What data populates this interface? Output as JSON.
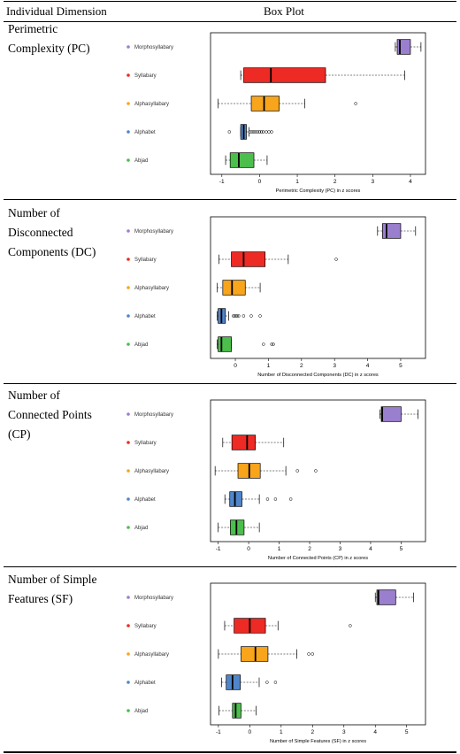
{
  "table": {
    "col1_header": "Individual Dimension",
    "col2_header": "Box Plot"
  },
  "colors": {
    "Morphosyllabary": "#9b7fcf",
    "Syllabary": "#ee2a24",
    "Alphasyllabary": "#f8a51c",
    "Alphabet": "#4f86cb",
    "Abjad": "#4cbe4c"
  },
  "rows": [
    {
      "label": "Perimetric Complexity (PC)",
      "chart_data": {
        "type": "boxplot",
        "orientation": "horizontal",
        "categories": [
          "Morphosyllabary",
          "Syllabary",
          "Alphasyllabary",
          "Alphabet",
          "Abjad"
        ],
        "xlabel": "Perimetric Complexity (PC) in z scores",
        "xticks": [
          -1,
          0,
          1,
          2,
          3,
          4
        ],
        "xlim": [
          -1.3,
          4.4
        ],
        "boxes": [
          {
            "name": "Morphosyllabary",
            "whislo": 3.6,
            "q1": 3.65,
            "med": 3.72,
            "q3": 4.0,
            "whishi": 4.28,
            "outliers": []
          },
          {
            "name": "Syllabary",
            "whislo": -0.5,
            "q1": -0.42,
            "med": 0.3,
            "q3": 1.75,
            "whishi": 3.85,
            "outliers": []
          },
          {
            "name": "Alphasyllabary",
            "whislo": -1.1,
            "q1": -0.22,
            "med": 0.12,
            "q3": 0.52,
            "whishi": 1.2,
            "outliers": [
              2.55
            ]
          },
          {
            "name": "Alphabet",
            "whislo": -0.5,
            "q1": -0.5,
            "med": -0.42,
            "q3": -0.35,
            "whishi": -0.28,
            "outliers": [
              -0.8,
              -0.25,
              -0.2,
              -0.15,
              -0.1,
              -0.05,
              0.0,
              0.05,
              0.1,
              0.18,
              0.25,
              0.32
            ]
          },
          {
            "name": "Abjad",
            "whislo": -0.9,
            "q1": -0.78,
            "med": -0.55,
            "q3": -0.15,
            "whishi": 0.2,
            "outliers": []
          }
        ]
      }
    },
    {
      "label": "Number of Disconnected Components (DC)",
      "chart_data": {
        "type": "boxplot",
        "orientation": "horizontal",
        "categories": [
          "Morphosyllabary",
          "Syllabary",
          "Alphasyllabary",
          "Alphabet",
          "Abjad"
        ],
        "xlabel": "Number of Disconnected Components (DC) in z scores",
        "xticks": [
          0,
          1,
          2,
          3,
          4,
          5
        ],
        "xlim": [
          -0.75,
          5.75
        ],
        "boxes": [
          {
            "name": "Morphosyllabary",
            "whislo": 4.3,
            "q1": 4.45,
            "med": 4.57,
            "q3": 5.0,
            "whishi": 5.45,
            "outliers": []
          },
          {
            "name": "Syllabary",
            "whislo": -0.5,
            "q1": -0.12,
            "med": 0.25,
            "q3": 0.9,
            "whishi": 1.6,
            "outliers": [
              3.05
            ]
          },
          {
            "name": "Alphasyllabary",
            "whislo": -0.55,
            "q1": -0.38,
            "med": -0.1,
            "q3": 0.3,
            "whishi": 0.75,
            "outliers": []
          },
          {
            "name": "Alphabet",
            "whislo": -0.55,
            "q1": -0.52,
            "med": -0.42,
            "q3": -0.3,
            "whishi": -0.2,
            "outliers": [
              -0.06,
              -0.02,
              0.02,
              0.06,
              0.1,
              0.25,
              0.48,
              0.75
            ]
          },
          {
            "name": "Abjad",
            "whislo": -0.55,
            "q1": -0.52,
            "med": -0.42,
            "q3": -0.12,
            "whishi": -0.12,
            "outliers": [
              0.85,
              1.1,
              1.15
            ]
          }
        ]
      }
    },
    {
      "label": "Number of Connected Points (CP)",
      "chart_data": {
        "type": "boxplot",
        "orientation": "horizontal",
        "categories": [
          "Morphosyllabary",
          "Syllabary",
          "Alphasyllabary",
          "Alphabet",
          "Abjad"
        ],
        "xlabel": "Number of Connected Points (CP) in z scores",
        "xticks": [
          -1,
          0,
          1,
          2,
          3,
          4,
          5
        ],
        "xlim": [
          -1.25,
          5.8
        ],
        "boxes": [
          {
            "name": "Morphosyllabary",
            "whislo": 4.3,
            "q1": 4.35,
            "med": 4.38,
            "q3": 5.0,
            "whishi": 5.55,
            "outliers": []
          },
          {
            "name": "Syllabary",
            "whislo": -0.85,
            "q1": -0.55,
            "med": -0.05,
            "q3": 0.22,
            "whishi": 1.15,
            "outliers": []
          },
          {
            "name": "Alphasyllabary",
            "whislo": -1.1,
            "q1": -0.35,
            "med": 0.02,
            "q3": 0.38,
            "whishi": 1.22,
            "outliers": [
              1.6,
              2.2
            ]
          },
          {
            "name": "Alphabet",
            "whislo": -0.78,
            "q1": -0.62,
            "med": -0.45,
            "q3": -0.22,
            "whishi": 0.35,
            "outliers": [
              0.62,
              0.88,
              1.38
            ]
          },
          {
            "name": "Abjad",
            "whislo": -1.0,
            "q1": -0.6,
            "med": -0.4,
            "q3": -0.15,
            "whishi": 0.35,
            "outliers": []
          }
        ]
      }
    },
    {
      "label": "Number of Simple Features (SF)",
      "chart_data": {
        "type": "boxplot",
        "orientation": "horizontal",
        "categories": [
          "Morphosyllabary",
          "Syllabary",
          "Alphasyllabary",
          "Alphabet",
          "Abjad"
        ],
        "xlabel": "Number of Simple Features (SF) in z scores",
        "xticks": [
          -1,
          0,
          1,
          2,
          3,
          4,
          5
        ],
        "xlim": [
          -1.25,
          5.6
        ],
        "boxes": [
          {
            "name": "Morphosyllabary",
            "whislo": 4.0,
            "q1": 4.05,
            "med": 4.1,
            "q3": 4.65,
            "whishi": 5.22,
            "outliers": []
          },
          {
            "name": "Syllabary",
            "whislo": -0.8,
            "q1": -0.5,
            "med": 0.0,
            "q3": 0.5,
            "whishi": 0.9,
            "outliers": [
              3.2
            ]
          },
          {
            "name": "Alphasyllabary",
            "whislo": -1.0,
            "q1": -0.28,
            "med": 0.18,
            "q3": 0.58,
            "whishi": 1.5,
            "outliers": [
              1.88,
              2.0
            ]
          },
          {
            "name": "Alphabet",
            "whislo": -0.9,
            "q1": -0.75,
            "med": -0.55,
            "q3": -0.3,
            "whishi": 0.3,
            "outliers": [
              0.55,
              0.82
            ]
          },
          {
            "name": "Abjad",
            "whislo": -0.98,
            "q1": -0.55,
            "med": -0.45,
            "q3": -0.28,
            "whishi": 0.2,
            "outliers": []
          }
        ]
      }
    }
  ]
}
